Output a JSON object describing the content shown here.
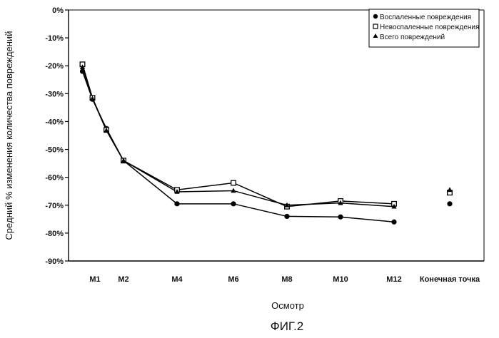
{
  "chart_data": {
    "type": "line",
    "categories": [
      "",
      "M1",
      "M2",
      "M4",
      "M6",
      "M8",
      "M10",
      "M12",
      "Конечная точка"
    ],
    "x_tick_labels": [
      "M1",
      "M2",
      "M4",
      "M6",
      "M8",
      "M10",
      "M12",
      "Конечная точка"
    ],
    "y_tick_labels": [
      "0%",
      "-10%",
      "-20%",
      "-30%",
      "-40%",
      "-50%",
      "-60%",
      "-70%",
      "-80%",
      "-90%"
    ],
    "ylim": [
      -90,
      0
    ],
    "xlabel": "Осмотр",
    "ylabel": "Средний % изменения количества повреждений",
    "legend_position": "top-right",
    "series": [
      {
        "name": "Воспаленные повреждения",
        "marker": "circle",
        "line_values": [
          -22,
          -32,
          -42.5,
          -54,
          -69.5,
          -69.5,
          -74,
          -74.2,
          -76
        ],
        "line_x": [
          0.5,
          0.9,
          1.4,
          2,
          3,
          4,
          5,
          6,
          7
        ],
        "endpoint": -69.5
      },
      {
        "name": "Невоспаленные повреждения",
        "marker": "square",
        "line_values": [
          -19.5,
          -31.5,
          -43,
          -54,
          -64.5,
          -62,
          -70.5,
          -68.5,
          -69.5
        ],
        "line_x": [
          0.5,
          0.9,
          1.4,
          2,
          3,
          4,
          5,
          6,
          7
        ],
        "endpoint": -65.5
      },
      {
        "name": "Всего повреждений",
        "marker": "triangle",
        "line_values": [
          -20.5,
          -31.8,
          -43.2,
          -54,
          -65.2,
          -64.8,
          -70,
          -69.2,
          -70.5
        ],
        "line_x": [
          0.5,
          0.9,
          1.4,
          2,
          3,
          4,
          5,
          6,
          7
        ],
        "endpoint": -64.5
      }
    ],
    "endpoint_x": 8
  },
  "figure_label": "ФИГ.2"
}
